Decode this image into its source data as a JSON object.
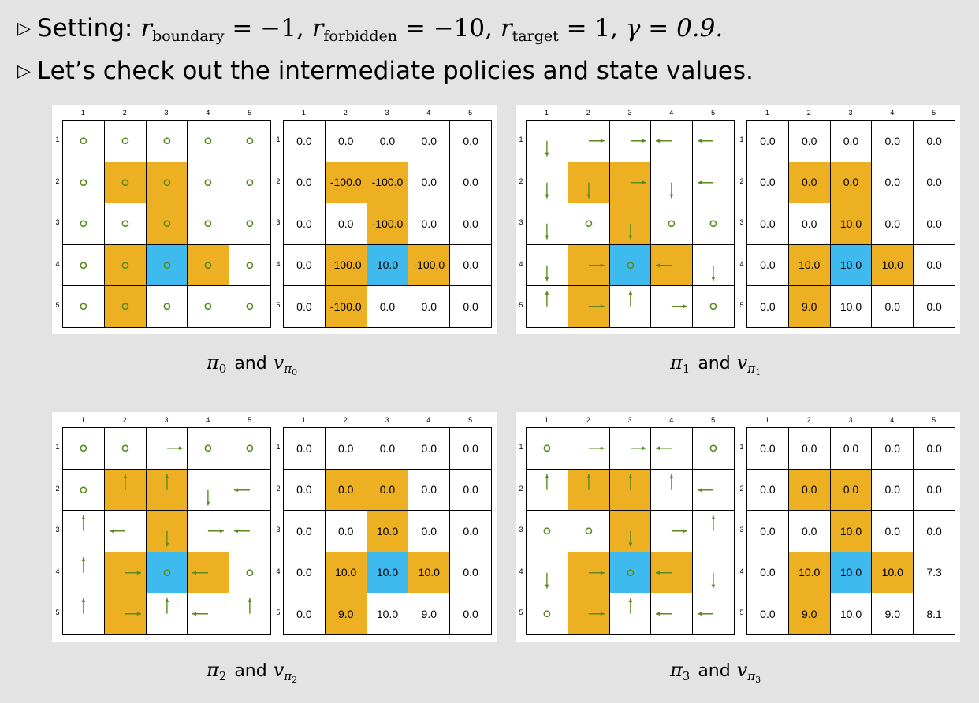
{
  "bullets": {
    "setting_prefix": "Setting:",
    "r_boundary_sub": "boundary",
    "r_boundary_val": "= −1,",
    "r_forbidden_sub": "forbidden",
    "r_forbidden_val": "= −10,",
    "r_target_sub": "target",
    "r_target_val": "= 1,",
    "gamma": "γ = 0.9.",
    "line2": "Let’s check out the intermediate policies and state values."
  },
  "column_labels": [
    "1",
    "2",
    "3",
    "4",
    "5"
  ],
  "row_labels": [
    "1",
    "2",
    "3",
    "4",
    "5"
  ],
  "colors": {
    "forbidden": "#ecb022",
    "target": "#3fbaee",
    "arrow": "#5a8a1e",
    "background": "#e3e3e3"
  },
  "cell_types": [
    [
      "n",
      "n",
      "n",
      "n",
      "n"
    ],
    [
      "n",
      "f",
      "f",
      "n",
      "n"
    ],
    [
      "n",
      "n",
      "f",
      "n",
      "n"
    ],
    [
      "n",
      "f",
      "t",
      "f",
      "n"
    ],
    [
      "n",
      "f",
      "n",
      "n",
      "n"
    ]
  ],
  "panels": [
    {
      "caption_pi": "π",
      "caption_idx": "0",
      "caption_and": "and",
      "caption_v": "v",
      "caption_vsub": "π",
      "caption_vsub2": "0",
      "policy": [
        [
          "o",
          "o",
          "o",
          "o",
          "o"
        ],
        [
          "o",
          "o",
          "o",
          "o",
          "o"
        ],
        [
          "o",
          "o",
          "o",
          "o",
          "o"
        ],
        [
          "o",
          "o",
          "o",
          "o",
          "o"
        ],
        [
          "o",
          "o",
          "o",
          "o",
          "o"
        ]
      ],
      "values": [
        [
          "0.0",
          "0.0",
          "0.0",
          "0.0",
          "0.0"
        ],
        [
          "0.0",
          "-100.0",
          "-100.0",
          "0.0",
          "0.0"
        ],
        [
          "0.0",
          "0.0",
          "-100.0",
          "0.0",
          "0.0"
        ],
        [
          "0.0",
          "-100.0",
          "10.0",
          "-100.0",
          "0.0"
        ],
        [
          "0.0",
          "-100.0",
          "0.0",
          "0.0",
          "0.0"
        ]
      ]
    },
    {
      "caption_pi": "π",
      "caption_idx": "1",
      "caption_and": "and",
      "caption_v": "v",
      "caption_vsub": "π",
      "caption_vsub2": "1",
      "policy": [
        [
          "d",
          "r",
          "r",
          "l",
          "l"
        ],
        [
          "d",
          "d",
          "r",
          "d",
          "l"
        ],
        [
          "d",
          "o",
          "d",
          "o",
          "o"
        ],
        [
          "d",
          "r",
          "o",
          "l",
          "d"
        ],
        [
          "u",
          "r",
          "u",
          "r",
          "o"
        ]
      ],
      "values": [
        [
          "0.0",
          "0.0",
          "0.0",
          "0.0",
          "0.0"
        ],
        [
          "0.0",
          "0.0",
          "0.0",
          "0.0",
          "0.0"
        ],
        [
          "0.0",
          "0.0",
          "10.0",
          "0.0",
          "0.0"
        ],
        [
          "0.0",
          "10.0",
          "10.0",
          "10.0",
          "0.0"
        ],
        [
          "0.0",
          "9.0",
          "10.0",
          "0.0",
          "0.0"
        ]
      ]
    },
    {
      "caption_pi": "π",
      "caption_idx": "2",
      "caption_and": "and",
      "caption_v": "v",
      "caption_vsub": "π",
      "caption_vsub2": "2",
      "policy": [
        [
          "o",
          "o",
          "r",
          "o",
          "o"
        ],
        [
          "o",
          "u",
          "u",
          "d",
          "l"
        ],
        [
          "u",
          "l",
          "d",
          "r",
          "l"
        ],
        [
          "u",
          "r",
          "o",
          "l",
          "o"
        ],
        [
          "u",
          "r",
          "u",
          "l",
          "u"
        ]
      ],
      "values": [
        [
          "0.0",
          "0.0",
          "0.0",
          "0.0",
          "0.0"
        ],
        [
          "0.0",
          "0.0",
          "0.0",
          "0.0",
          "0.0"
        ],
        [
          "0.0",
          "0.0",
          "10.0",
          "0.0",
          "0.0"
        ],
        [
          "0.0",
          "10.0",
          "10.0",
          "10.0",
          "0.0"
        ],
        [
          "0.0",
          "9.0",
          "10.0",
          "9.0",
          "0.0"
        ]
      ]
    },
    {
      "caption_pi": "π",
      "caption_idx": "3",
      "caption_and": "and",
      "caption_v": "v",
      "caption_vsub": "π",
      "caption_vsub2": "3",
      "policy": [
        [
          "o",
          "r",
          "r",
          "l",
          "o"
        ],
        [
          "u",
          "u",
          "u",
          "u",
          "l"
        ],
        [
          "o",
          "o",
          "d",
          "r",
          "u"
        ],
        [
          "d",
          "r",
          "o",
          "l",
          "d"
        ],
        [
          "o",
          "r",
          "u",
          "l",
          "l"
        ]
      ],
      "values": [
        [
          "0.0",
          "0.0",
          "0.0",
          "0.0",
          "0.0"
        ],
        [
          "0.0",
          "0.0",
          "0.0",
          "0.0",
          "0.0"
        ],
        [
          "0.0",
          "0.0",
          "10.0",
          "0.0",
          "0.0"
        ],
        [
          "0.0",
          "10.0",
          "10.0",
          "10.0",
          "7.3"
        ],
        [
          "0.0",
          "9.0",
          "10.0",
          "9.0",
          "8.1"
        ]
      ]
    }
  ]
}
